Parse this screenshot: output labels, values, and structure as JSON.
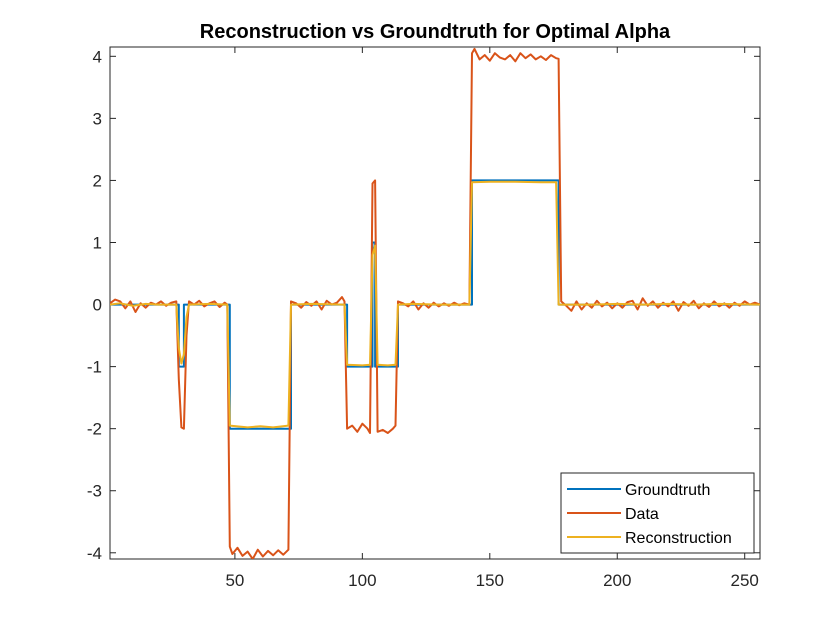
{
  "chart_data": {
    "type": "line",
    "title": "Reconstruction vs Groundtruth for Optimal Alpha",
    "xlabel": "",
    "ylabel": "",
    "xlim": [
      1,
      256
    ],
    "ylim": [
      -4.1,
      4.15
    ],
    "xticks": [
      50,
      100,
      150,
      200,
      250
    ],
    "yticks": [
      -4,
      -3,
      -2,
      -1,
      0,
      1,
      2,
      3,
      4
    ],
    "grid": false,
    "legend_position": "bottom-right",
    "series": [
      {
        "name": "Groundtruth",
        "color": "#0072BD",
        "points": [
          [
            1,
            0
          ],
          [
            28,
            0
          ],
          [
            28,
            -1
          ],
          [
            30,
            -1
          ],
          [
            30,
            0
          ],
          [
            48,
            0
          ],
          [
            48,
            -2
          ],
          [
            72,
            -2
          ],
          [
            72,
            0
          ],
          [
            94,
            0
          ],
          [
            94,
            -1
          ],
          [
            104,
            -1
          ],
          [
            104,
            1
          ],
          [
            105,
            1
          ],
          [
            105,
            -1
          ],
          [
            114,
            -1
          ],
          [
            114,
            0
          ],
          [
            143,
            0
          ],
          [
            143,
            2
          ],
          [
            177,
            2
          ],
          [
            177,
            0
          ],
          [
            256,
            0
          ]
        ]
      },
      {
        "name": "Data",
        "color": "#D95319",
        "points": [
          [
            1,
            0.02
          ],
          [
            3,
            0.08
          ],
          [
            5,
            0.05
          ],
          [
            7,
            -0.06
          ],
          [
            9,
            0.05
          ],
          [
            11,
            -0.12
          ],
          [
            13,
            0.02
          ],
          [
            15,
            -0.05
          ],
          [
            17,
            0.03
          ],
          [
            19,
            0.0
          ],
          [
            21,
            0.05
          ],
          [
            23,
            -0.02
          ],
          [
            25,
            0.03
          ],
          [
            27,
            0.05
          ],
          [
            28,
            -1.2
          ],
          [
            29,
            -1.98
          ],
          [
            30,
            -2.0
          ],
          [
            31,
            -0.5
          ],
          [
            32,
            0.05
          ],
          [
            34,
            0.0
          ],
          [
            36,
            0.06
          ],
          [
            38,
            -0.03
          ],
          [
            40,
            0.02
          ],
          [
            42,
            0.05
          ],
          [
            44,
            -0.04
          ],
          [
            46,
            0.03
          ],
          [
            47,
            0.0
          ],
          [
            48,
            -3.9
          ],
          [
            49,
            -4.02
          ],
          [
            51,
            -3.92
          ],
          [
            53,
            -4.05
          ],
          [
            55,
            -3.98
          ],
          [
            57,
            -4.1
          ],
          [
            59,
            -3.95
          ],
          [
            61,
            -4.06
          ],
          [
            63,
            -3.97
          ],
          [
            65,
            -4.04
          ],
          [
            67,
            -3.96
          ],
          [
            69,
            -4.03
          ],
          [
            71,
            -3.95
          ],
          [
            72,
            0.05
          ],
          [
            74,
            0.02
          ],
          [
            76,
            -0.05
          ],
          [
            78,
            0.04
          ],
          [
            80,
            -0.02
          ],
          [
            82,
            0.05
          ],
          [
            84,
            -0.08
          ],
          [
            86,
            0.06
          ],
          [
            88,
            0.0
          ],
          [
            90,
            0.03
          ],
          [
            92,
            0.12
          ],
          [
            93,
            0.05
          ],
          [
            94,
            -2.0
          ],
          [
            96,
            -1.95
          ],
          [
            98,
            -2.05
          ],
          [
            100,
            -1.92
          ],
          [
            102,
            -2.0
          ],
          [
            103,
            -2.07
          ],
          [
            104,
            1.95
          ],
          [
            105,
            2.0
          ],
          [
            106,
            -2.05
          ],
          [
            108,
            -2.02
          ],
          [
            110,
            -2.07
          ],
          [
            112,
            -2.0
          ],
          [
            113,
            -1.95
          ],
          [
            114,
            0.05
          ],
          [
            116,
            0.02
          ],
          [
            118,
            -0.03
          ],
          [
            120,
            0.05
          ],
          [
            122,
            -0.08
          ],
          [
            124,
            0.02
          ],
          [
            126,
            -0.05
          ],
          [
            128,
            0.03
          ],
          [
            130,
            -0.03
          ],
          [
            132,
            0.02
          ],
          [
            134,
            -0.02
          ],
          [
            136,
            0.03
          ],
          [
            138,
            -0.01
          ],
          [
            140,
            0.02
          ],
          [
            142,
            0.0
          ],
          [
            143,
            4.05
          ],
          [
            144,
            4.12
          ],
          [
            146,
            3.95
          ],
          [
            148,
            4.02
          ],
          [
            150,
            3.93
          ],
          [
            152,
            4.05
          ],
          [
            154,
            3.98
          ],
          [
            156,
            3.95
          ],
          [
            158,
            4.02
          ],
          [
            160,
            3.92
          ],
          [
            162,
            4.05
          ],
          [
            164,
            3.97
          ],
          [
            166,
            4.03
          ],
          [
            168,
            3.95
          ],
          [
            170,
            4.0
          ],
          [
            172,
            3.94
          ],
          [
            174,
            4.02
          ],
          [
            176,
            3.97
          ],
          [
            177,
            3.96
          ],
          [
            178,
            0.05
          ],
          [
            180,
            -0.02
          ],
          [
            182,
            -0.1
          ],
          [
            184,
            0.05
          ],
          [
            186,
            -0.08
          ],
          [
            188,
            0.02
          ],
          [
            190,
            -0.05
          ],
          [
            192,
            0.06
          ],
          [
            194,
            -0.03
          ],
          [
            196,
            0.03
          ],
          [
            198,
            -0.06
          ],
          [
            200,
            0.02
          ],
          [
            202,
            -0.05
          ],
          [
            204,
            0.04
          ],
          [
            206,
            0.06
          ],
          [
            208,
            -0.08
          ],
          [
            210,
            0.1
          ],
          [
            212,
            -0.02
          ],
          [
            214,
            0.05
          ],
          [
            216,
            -0.05
          ],
          [
            218,
            0.03
          ],
          [
            220,
            -0.03
          ],
          [
            222,
            0.05
          ],
          [
            224,
            -0.1
          ],
          [
            226,
            0.04
          ],
          [
            228,
            -0.02
          ],
          [
            230,
            0.06
          ],
          [
            232,
            -0.06
          ],
          [
            234,
            0.02
          ],
          [
            236,
            -0.04
          ],
          [
            238,
            0.05
          ],
          [
            240,
            -0.03
          ],
          [
            242,
            0.02
          ],
          [
            244,
            -0.05
          ],
          [
            246,
            0.03
          ],
          [
            248,
            -0.02
          ],
          [
            250,
            0.05
          ],
          [
            252,
            0.0
          ],
          [
            254,
            0.03
          ],
          [
            256,
            0.0
          ]
        ]
      },
      {
        "name": "Reconstruction",
        "color": "#EDB120",
        "points": [
          [
            1,
            0.0
          ],
          [
            5,
            0.02
          ],
          [
            10,
            -0.02
          ],
          [
            15,
            0.01
          ],
          [
            20,
            0.0
          ],
          [
            27,
            0.0
          ],
          [
            28,
            -0.7
          ],
          [
            29,
            -0.95
          ],
          [
            30,
            -0.8
          ],
          [
            31,
            -0.2
          ],
          [
            32,
            0.0
          ],
          [
            40,
            0.01
          ],
          [
            47,
            0.0
          ],
          [
            48,
            -1.95
          ],
          [
            55,
            -1.98
          ],
          [
            60,
            -1.96
          ],
          [
            65,
            -1.98
          ],
          [
            71,
            -1.95
          ],
          [
            72,
            0.0
          ],
          [
            80,
            0.01
          ],
          [
            93,
            0.0
          ],
          [
            94,
            -0.97
          ],
          [
            100,
            -0.98
          ],
          [
            103,
            -0.97
          ],
          [
            104,
            0.8
          ],
          [
            105,
            0.95
          ],
          [
            106,
            -0.97
          ],
          [
            110,
            -0.98
          ],
          [
            113,
            -0.97
          ],
          [
            114,
            0.0
          ],
          [
            120,
            0.01
          ],
          [
            130,
            0.0
          ],
          [
            142,
            0.0
          ],
          [
            143,
            1.97
          ],
          [
            150,
            1.98
          ],
          [
            160,
            1.98
          ],
          [
            170,
            1.97
          ],
          [
            176,
            1.97
          ],
          [
            177,
            0.0
          ],
          [
            190,
            0.0
          ],
          [
            200,
            0.01
          ],
          [
            210,
            0.0
          ],
          [
            220,
            0.01
          ],
          [
            230,
            0.0
          ],
          [
            240,
            0.01
          ],
          [
            256,
            0.0
          ]
        ]
      }
    ]
  }
}
